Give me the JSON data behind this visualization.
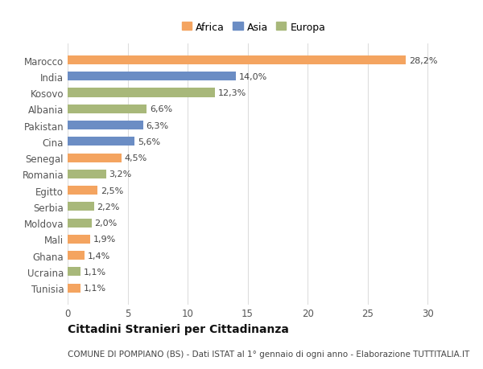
{
  "countries": [
    "Tunisia",
    "Ucraina",
    "Ghana",
    "Mali",
    "Moldova",
    "Serbia",
    "Egitto",
    "Romania",
    "Senegal",
    "Cina",
    "Pakistan",
    "Albania",
    "Kosovo",
    "India",
    "Marocco"
  ],
  "values": [
    1.1,
    1.1,
    1.4,
    1.9,
    2.0,
    2.2,
    2.5,
    3.2,
    4.5,
    5.6,
    6.3,
    6.6,
    12.3,
    14.0,
    28.2
  ],
  "labels": [
    "1,1%",
    "1,1%",
    "1,4%",
    "1,9%",
    "2,0%",
    "2,2%",
    "2,5%",
    "3,2%",
    "4,5%",
    "5,6%",
    "6,3%",
    "6,6%",
    "12,3%",
    "14,0%",
    "28,2%"
  ],
  "continents": [
    "Africa",
    "Europa",
    "Africa",
    "Africa",
    "Europa",
    "Europa",
    "Africa",
    "Europa",
    "Africa",
    "Asia",
    "Asia",
    "Europa",
    "Europa",
    "Asia",
    "Africa"
  ],
  "colors": {
    "Africa": "#F4A460",
    "Asia": "#6B8DC4",
    "Europa": "#A8B87A"
  },
  "xlim": [
    0,
    31
  ],
  "xticks": [
    0,
    5,
    10,
    15,
    20,
    25,
    30
  ],
  "background_color": "#ffffff",
  "grid_color": "#dddddd",
  "title1": "Cittadini Stranieri per Cittadinanza",
  "title2": "COMUNE DI POMPIANO (BS) - Dati ISTAT al 1° gennaio di ogni anno - Elaborazione TUTTITALIA.IT",
  "bar_height": 0.55,
  "label_fontsize": 8,
  "ytick_fontsize": 8.5,
  "xtick_fontsize": 8.5,
  "title1_fontsize": 10,
  "title2_fontsize": 7.5,
  "legend_fontsize": 9
}
